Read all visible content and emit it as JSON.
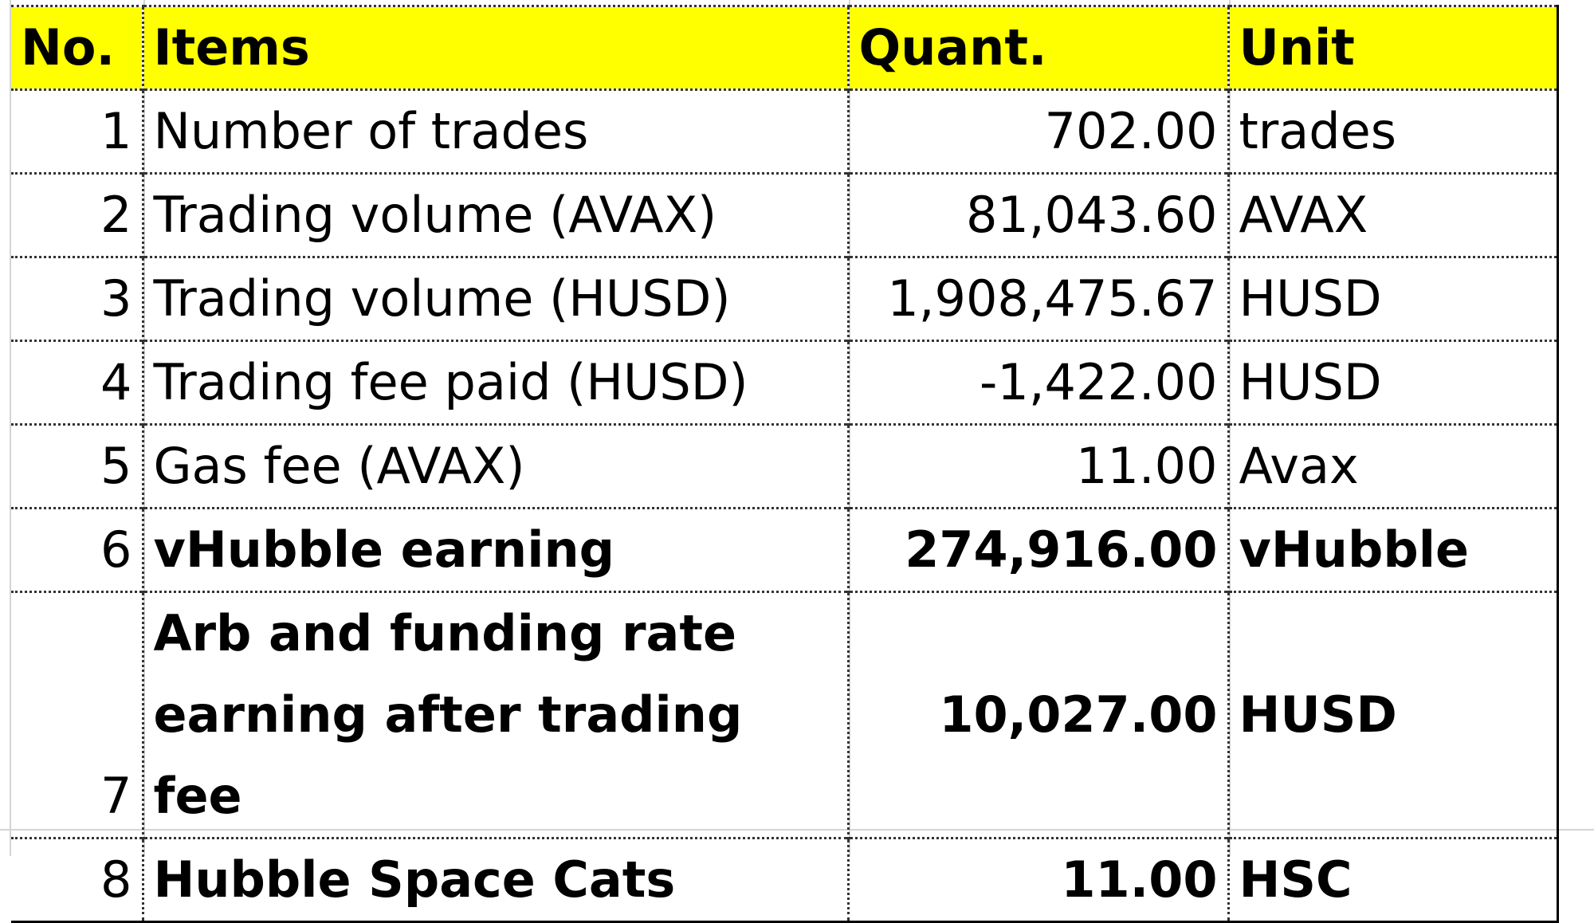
{
  "header": {
    "no": "No.",
    "items": "Items",
    "quant": "Quant.",
    "unit": "Unit"
  },
  "rows": [
    {
      "no": "1",
      "item": "Number of trades",
      "quant": "702.00",
      "unit": "trades",
      "bold": false
    },
    {
      "no": "2",
      "item": "Trading volume (AVAX)",
      "quant": "81,043.60",
      "unit": "AVAX",
      "bold": false
    },
    {
      "no": "3",
      "item": "Trading volume (HUSD)",
      "quant": "1,908,475.67",
      "unit": "HUSD",
      "bold": false
    },
    {
      "no": "4",
      "item": "Trading fee paid (HUSD)",
      "quant": "-1,422.00",
      "unit": "HUSD",
      "bold": false
    },
    {
      "no": "5",
      "item": "Gas fee (AVAX)",
      "quant": "11.00",
      "unit": "Avax",
      "bold": false
    },
    {
      "no": "6",
      "item": "vHubble earning",
      "quant": "274,916.00",
      "unit": "vHubble",
      "bold": true
    },
    {
      "no": "7",
      "item": "Arb and funding rate earning after trading fee",
      "quant": "10,027.00",
      "unit": "HUSD",
      "bold": true
    },
    {
      "no": "8",
      "item": "Hubble Space Cats",
      "quant": "11.00",
      "unit": "HSC",
      "bold": true
    }
  ],
  "colors": {
    "header_background": "#ffff00",
    "gridline": "#d4d4d4",
    "border": "#000000"
  }
}
